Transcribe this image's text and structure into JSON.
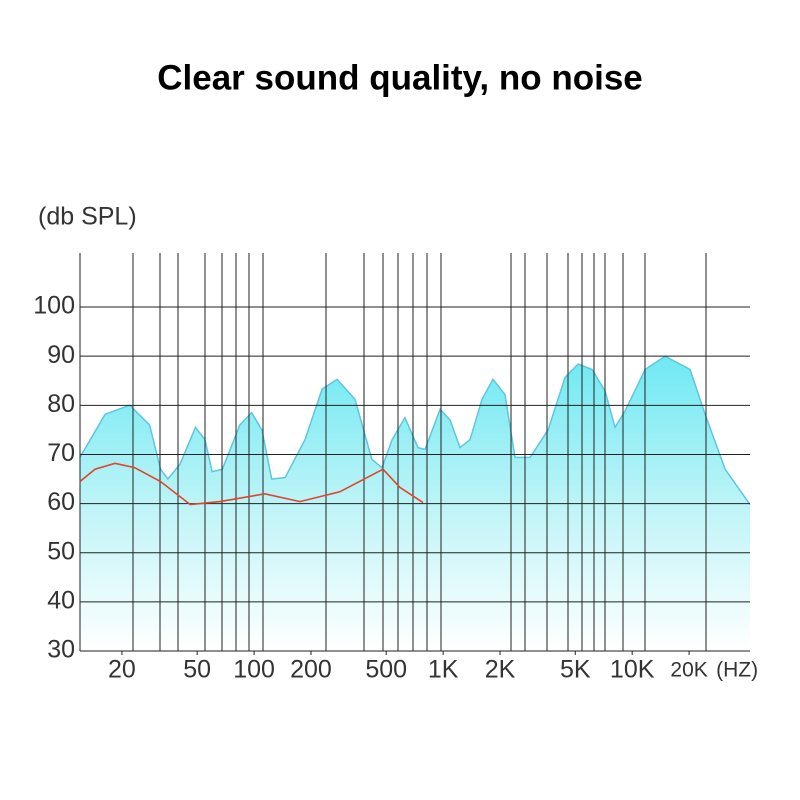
{
  "chart_data": {
    "type": "line",
    "title": "Clear sound quality, no noise",
    "y_label": "(db SPL)",
    "x_label": "(HZ)",
    "log_x": true,
    "xlim": [
      12,
      42000
    ],
    "xticks": [
      20,
      50,
      100,
      200,
      500,
      {
        "value": 1000,
        "label": "1K"
      },
      {
        "value": 2000,
        "label": "2K"
      },
      {
        "value": 5000,
        "label": "5K"
      },
      {
        "value": 10000,
        "label": "10K"
      },
      {
        "value": 20000,
        "label": "20K"
      }
    ],
    "ylim": [
      30,
      111
    ],
    "yticks": [
      30,
      40,
      50,
      60,
      70,
      80,
      90,
      100
    ],
    "grid": true,
    "series": [
      {
        "color": "#5ec6de",
        "fill": true,
        "x": [
          12,
          16.3,
          22,
          28,
          32,
          35,
          40.5,
          49,
          55,
          60,
          68,
          84,
          97,
          110,
          124,
          146,
          186,
          229,
          275,
          342,
          420,
          475,
          537,
          628,
          736,
          802,
          964,
          1088,
          1228,
          1388,
          1606,
          1836,
          2124,
          2400,
          2884,
          3590,
          4416,
          5176,
          6137,
          7192,
          8115,
          9165,
          11700,
          14930,
          20240,
          24300,
          31000,
          42000
        ],
        "values": [
          69.4,
          78.2,
          80,
          76,
          67,
          65,
          68,
          75.5,
          73,
          66.5,
          67,
          76,
          78.5,
          75,
          65,
          65.3,
          73,
          83.3,
          85.3,
          81.2,
          69,
          67.3,
          73,
          77.5,
          71.4,
          71,
          79.2,
          77,
          71.4,
          73,
          81.2,
          85.3,
          82.2,
          69.4,
          69.4,
          75,
          85.7,
          88.4,
          87.3,
          82.9,
          75.5,
          78.8,
          87.3,
          90,
          87.3,
          78.2,
          67,
          59.8
        ]
      },
      {
        "color": "#e0442a",
        "fill": false,
        "x": [
          12,
          14.4,
          18.4,
          23.4,
          32,
          46,
          66,
          114,
          175,
          284,
          481,
          591,
          783
        ],
        "values": [
          64.5,
          67,
          68.2,
          67.3,
          64.5,
          59.8,
          60.4,
          62,
          60.4,
          62.4,
          67,
          63.3,
          60.2
        ]
      }
    ]
  }
}
